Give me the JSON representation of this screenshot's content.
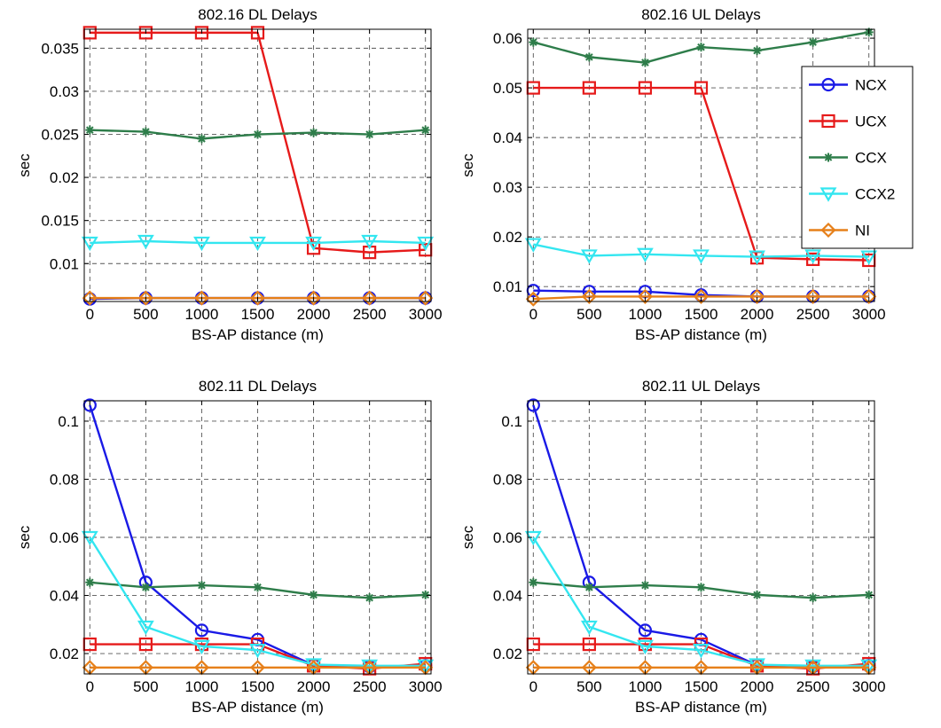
{
  "colors": {
    "NCX": "#1a1ae6",
    "UCX": "#e61a1a",
    "CCX": "#2e7d4a",
    "CCX2": "#33e6f0",
    "NI": "#e6801a"
  },
  "chart_data": [
    {
      "type": "line",
      "title": "802.16 DL Delays",
      "xlabel": "BS-AP distance (m)",
      "ylabel": "sec",
      "x": [
        0,
        500,
        1000,
        1500,
        2000,
        2500,
        3000
      ],
      "xlim": [
        -50,
        3050
      ],
      "ylim": [
        0.0056,
        0.0372
      ],
      "xticks": [
        0,
        500,
        1000,
        1500,
        2000,
        2500,
        3000
      ],
      "yticks": [
        0.01,
        0.015,
        0.02,
        0.025,
        0.03,
        0.035
      ],
      "yticklabels": [
        "0.01",
        "0.015",
        "0.02",
        "0.025",
        "0.03",
        "0.035"
      ],
      "grid": true,
      "legend": null,
      "series": [
        {
          "name": "NCX",
          "marker": "circle",
          "values": [
            0.0059,
            0.006,
            0.006,
            0.006,
            0.006,
            0.006,
            0.006
          ]
        },
        {
          "name": "UCX",
          "marker": "square",
          "values": [
            0.0368,
            0.0368,
            0.0368,
            0.0368,
            0.0118,
            0.0113,
            0.0116
          ]
        },
        {
          "name": "CCX",
          "marker": "star",
          "values": [
            0.0255,
            0.0253,
            0.0245,
            0.025,
            0.0252,
            0.025,
            0.0255
          ]
        },
        {
          "name": "CCX2",
          "marker": "triangle-down",
          "values": [
            0.0124,
            0.0126,
            0.0124,
            0.0124,
            0.0124,
            0.0126,
            0.0124
          ]
        },
        {
          "name": "NI",
          "marker": "diamond",
          "values": [
            0.006,
            0.006,
            0.006,
            0.006,
            0.006,
            0.006,
            0.006
          ]
        }
      ]
    },
    {
      "type": "line",
      "title": "802.16 UL Delays",
      "xlabel": "BS-AP distance (m)",
      "ylabel": "sec",
      "x": [
        0,
        500,
        1000,
        1500,
        2000,
        2500,
        3000
      ],
      "xlim": [
        -50,
        3050
      ],
      "ylim": [
        0.007,
        0.0618
      ],
      "xticks": [
        0,
        500,
        1000,
        1500,
        2000,
        2500,
        3000
      ],
      "yticks": [
        0.01,
        0.02,
        0.03,
        0.04,
        0.05,
        0.06
      ],
      "yticklabels": [
        "0.01",
        "0.02",
        "0.03",
        "0.04",
        "0.05",
        "0.06"
      ],
      "grid": true,
      "legend": "top-right",
      "series": [
        {
          "name": "NCX",
          "marker": "circle",
          "values": [
            0.0092,
            0.009,
            0.009,
            0.0083,
            0.008,
            0.008,
            0.008
          ]
        },
        {
          "name": "UCX",
          "marker": "square",
          "values": [
            0.05,
            0.05,
            0.05,
            0.05,
            0.0158,
            0.0155,
            0.0153
          ]
        },
        {
          "name": "CCX",
          "marker": "star",
          "values": [
            0.0592,
            0.0562,
            0.0551,
            0.0582,
            0.0575,
            0.0592,
            0.0612
          ]
        },
        {
          "name": "CCX2",
          "marker": "triangle-down",
          "values": [
            0.0185,
            0.0162,
            0.0165,
            0.0162,
            0.016,
            0.0162,
            0.016
          ]
        },
        {
          "name": "NI",
          "marker": "diamond",
          "values": [
            0.0075,
            0.008,
            0.008,
            0.008,
            0.008,
            0.008,
            0.008
          ]
        }
      ]
    },
    {
      "type": "line",
      "title": "802.11 DL Delays",
      "xlabel": "BS-AP distance (m)",
      "ylabel": "sec",
      "x": [
        0,
        500,
        1000,
        1500,
        2000,
        2500,
        3000
      ],
      "xlim": [
        -50,
        3050
      ],
      "ylim": [
        0.013,
        0.107
      ],
      "xticks": [
        0,
        500,
        1000,
        1500,
        2000,
        2500,
        3000
      ],
      "yticks": [
        0.02,
        0.04,
        0.06,
        0.08,
        0.1
      ],
      "yticklabels": [
        "0.02",
        "0.04",
        "0.06",
        "0.08",
        "0.1"
      ],
      "grid": true,
      "legend": null,
      "series": [
        {
          "name": "NCX",
          "marker": "circle",
          "values": [
            0.1055,
            0.0445,
            0.028,
            0.0248,
            0.016,
            0.0155,
            0.0158
          ]
        },
        {
          "name": "UCX",
          "marker": "square",
          "values": [
            0.0232,
            0.0232,
            0.0232,
            0.0232,
            0.0158,
            0.0148,
            0.0165
          ]
        },
        {
          "name": "CCX",
          "marker": "star",
          "values": [
            0.0445,
            0.0428,
            0.0435,
            0.0428,
            0.0402,
            0.0392,
            0.0402
          ]
        },
        {
          "name": "CCX2",
          "marker": "triangle-down",
          "values": [
            0.06,
            0.0292,
            0.0225,
            0.0212,
            0.0162,
            0.0158,
            0.0158
          ]
        },
        {
          "name": "NI",
          "marker": "diamond",
          "values": [
            0.0152,
            0.0152,
            0.0152,
            0.0152,
            0.0152,
            0.0152,
            0.0152
          ]
        }
      ]
    },
    {
      "type": "line",
      "title": "802.11 UL Delays",
      "xlabel": "BS-AP distance (m)",
      "ylabel": "sec",
      "x": [
        0,
        500,
        1000,
        1500,
        2000,
        2500,
        3000
      ],
      "xlim": [
        -50,
        3050
      ],
      "ylim": [
        0.013,
        0.107
      ],
      "xticks": [
        0,
        500,
        1000,
        1500,
        2000,
        2500,
        3000
      ],
      "yticks": [
        0.02,
        0.04,
        0.06,
        0.08,
        0.1
      ],
      "yticklabels": [
        "0.02",
        "0.04",
        "0.06",
        "0.08",
        "0.1"
      ],
      "grid": true,
      "legend": null,
      "series": [
        {
          "name": "NCX",
          "marker": "circle",
          "values": [
            0.1055,
            0.0445,
            0.028,
            0.0248,
            0.016,
            0.0155,
            0.0158
          ]
        },
        {
          "name": "UCX",
          "marker": "square",
          "values": [
            0.0232,
            0.0232,
            0.0232,
            0.0232,
            0.0158,
            0.0148,
            0.0165
          ]
        },
        {
          "name": "CCX",
          "marker": "star",
          "values": [
            0.0445,
            0.0428,
            0.0435,
            0.0428,
            0.0402,
            0.0392,
            0.0402
          ]
        },
        {
          "name": "CCX2",
          "marker": "triangle-down",
          "values": [
            0.06,
            0.0292,
            0.0225,
            0.0212,
            0.0162,
            0.0158,
            0.0158
          ]
        },
        {
          "name": "NI",
          "marker": "diamond",
          "values": [
            0.0152,
            0.0152,
            0.0152,
            0.0152,
            0.0152,
            0.0152,
            0.0152
          ]
        }
      ]
    }
  ]
}
